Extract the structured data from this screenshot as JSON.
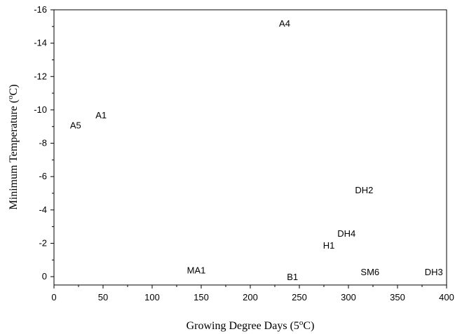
{
  "chart_data": {
    "type": "scatter",
    "xlabel": "Growing Degree Days (5",
    "xlabel_sup": "o",
    "xlabel_end": "C)",
    "ylabel": "Minimum Temperature (",
    "ylabel_sup": "o",
    "ylabel_end": "C)",
    "xlim": [
      0,
      400
    ],
    "ylim": [
      0.5,
      -16
    ],
    "y_inverted": true,
    "grid": false,
    "x_ticks": [
      "0",
      "50",
      "100",
      "150",
      "200",
      "250",
      "300",
      "350",
      "400"
    ],
    "y_ticks": [
      "0",
      "-2",
      "-4",
      "-6",
      "-8",
      "-10",
      "-12",
      "-14",
      "-16"
    ],
    "x_tick_values": [
      0,
      50,
      100,
      150,
      200,
      250,
      300,
      350,
      400
    ],
    "y_tick_values": [
      0,
      -2,
      -4,
      -6,
      -8,
      -10,
      -12,
      -14,
      -16
    ],
    "points": [
      {
        "label": "A4",
        "x": 235,
        "y": -15.2
      },
      {
        "label": "A1",
        "x": 48,
        "y": -9.7
      },
      {
        "label": "A5",
        "x": 22,
        "y": -9.1
      },
      {
        "label": "DH2",
        "x": 316,
        "y": -5.2
      },
      {
        "label": "DH4",
        "x": 298,
        "y": -2.6
      },
      {
        "label": "H1",
        "x": 280,
        "y": -1.9
      },
      {
        "label": "MA1",
        "x": 145,
        "y": -0.4
      },
      {
        "label": "B1",
        "x": 243,
        "y": 0.0
      },
      {
        "label": "SM6",
        "x": 322,
        "y": -0.3
      },
      {
        "label": "DH3",
        "x": 387,
        "y": -0.3
      }
    ]
  }
}
